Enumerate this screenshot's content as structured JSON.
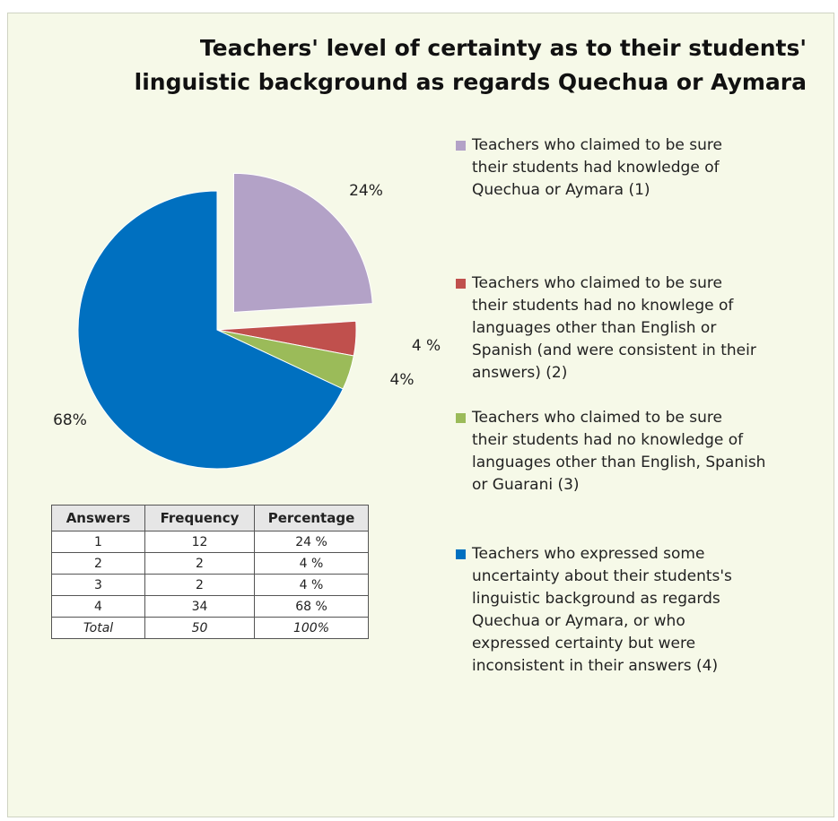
{
  "chart_data": {
    "type": "pie",
    "title_lines": [
      "Teachers' level of certainty as to their students'",
      "linguistic background as regards Quechua or Aymara"
    ],
    "slices": [
      {
        "label": "Teachers who claimed to be sure their students had knowledge of Quechua or Aymara (1)",
        "value": 24,
        "display": "24%",
        "color": "#b3a2c7",
        "exploded": true
      },
      {
        "label": "Teachers who claimed to be sure their students had no knowlege of languages other than English or Spanish (and were consistent in their answers) (2)",
        "value": 4,
        "display": "4 %",
        "color": "#c0504d",
        "exploded": false
      },
      {
        "label": "Teachers who claimed to be sure their students had no knowledge of languages other than English, Spanish or Guarani (3)",
        "value": 4,
        "display": "4%",
        "color": "#9bbb59",
        "exploded": false
      },
      {
        "label": "Teachers who expressed some uncertainty about their students's linguistic background as regards Quechua or Aymara, or who expressed certainty but were inconsistent in their answers (4)",
        "value": 68,
        "display": "68%",
        "color": "#0070c0",
        "exploded": false
      }
    ],
    "legend_position": "right"
  },
  "legend": [
    {
      "lines": [
        "Teachers who claimed to be sure",
        "their students had knowledge of",
        "Quechua or Aymara (1)"
      ]
    },
    {
      "lines": [
        "Teachers who claimed to be sure",
        "their students had no knowlege of",
        "languages other than English or",
        "Spanish (and were consistent in their",
        "answers) (2)"
      ]
    },
    {
      "lines": [
        "Teachers who claimed to be sure",
        "their students had no knowledge of",
        "languages other than English, Spanish",
        "or Guarani (3)"
      ]
    },
    {
      "lines": [
        "Teachers who expressed some",
        "uncertainty about their students's",
        "linguistic background as regards",
        "Quechua or Aymara, or who",
        "expressed certainty but were",
        "inconsistent in their answers (4)"
      ]
    }
  ],
  "table": {
    "headers": [
      "Answers",
      "Frequency",
      "Percentage"
    ],
    "rows": [
      [
        "1",
        "12",
        "24 %"
      ],
      [
        "2",
        "2",
        "4 %"
      ],
      [
        "3",
        "2",
        "4 %"
      ],
      [
        "4",
        "34",
        "68 %"
      ]
    ],
    "total": [
      "Total",
      "50",
      "100%"
    ]
  }
}
